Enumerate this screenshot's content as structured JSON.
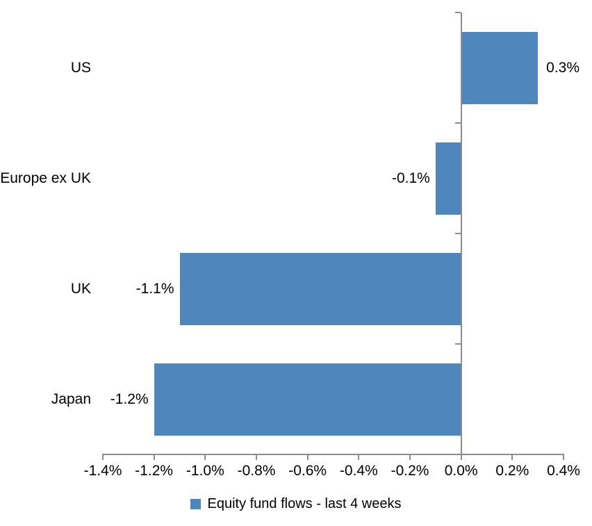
{
  "chart_data": {
    "type": "bar",
    "orientation": "horizontal",
    "title": "",
    "series_name": "Equity fund flows - last 4 weeks",
    "categories": [
      "US",
      "Europe ex UK",
      "UK",
      "Japan"
    ],
    "values": [
      0.3,
      -0.1,
      -1.1,
      -1.2
    ],
    "data_labels": [
      "0.3%",
      "-0.1%",
      "-1.1%",
      "-1.2%"
    ],
    "unit": "%",
    "x_axis": {
      "min": -1.4,
      "max": 0.4,
      "tick_step": 0.2,
      "tick_labels": [
        "-1.4%",
        "-1.2%",
        "-1.0%",
        "-0.8%",
        "-0.6%",
        "-0.4%",
        "-0.2%",
        "0.0%",
        "0.2%",
        "0.4%"
      ]
    },
    "y_axis": {
      "label": ""
    },
    "grid": false,
    "legend_position": "bottom",
    "colors": {
      "bar": "#4F87BD",
      "axis": "#8C8C8C",
      "text": "#000000",
      "background": "#FFFFFF"
    }
  }
}
